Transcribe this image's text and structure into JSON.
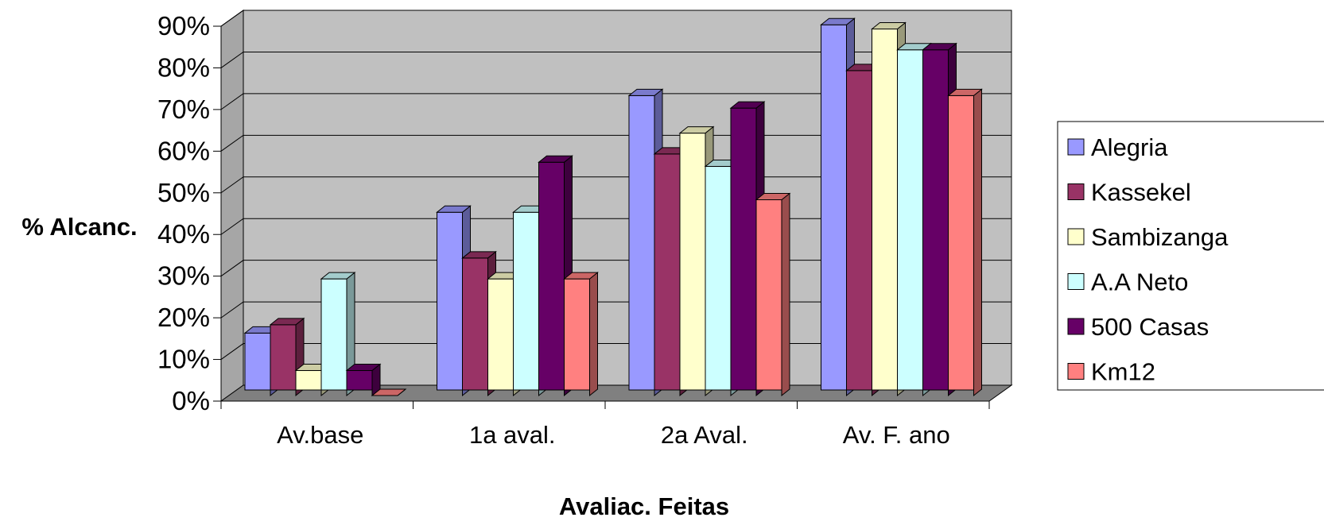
{
  "chart_data": {
    "type": "bar",
    "style": "3d-clustered-column",
    "xlabel": "Avaliac. Feitas",
    "ylabel": "% Alcanc.",
    "ylim": [
      0,
      90
    ],
    "yticks": [
      "0%",
      "10%",
      "20%",
      "30%",
      "40%",
      "50%",
      "60%",
      "70%",
      "80%",
      "90%"
    ],
    "categories": [
      "Av.base",
      "1a aval.",
      "2a Aval.",
      "Av. F. ano"
    ],
    "series": [
      {
        "name": "Alegria",
        "values": [
          15,
          44,
          72,
          89
        ],
        "color": "#9999ff"
      },
      {
        "name": "Kassekel",
        "values": [
          17,
          33,
          58,
          78
        ],
        "color": "#993366"
      },
      {
        "name": "Sambizanga",
        "values": [
          6,
          28,
          63,
          88
        ],
        "color": "#ffffcc"
      },
      {
        "name": "A.A Neto",
        "values": [
          28,
          44,
          55,
          83
        ],
        "color": "#ccffff"
      },
      {
        "name": "500 Casas",
        "values": [
          6,
          56,
          69,
          83
        ],
        "color": "#660066"
      },
      {
        "name": "Km12",
        "values": [
          0,
          28,
          47,
          72
        ],
        "color": "#ff8080"
      }
    ],
    "grid": true,
    "legend_position": "right",
    "wall_color": "#c0c0c0",
    "floor_color": "#808080"
  }
}
